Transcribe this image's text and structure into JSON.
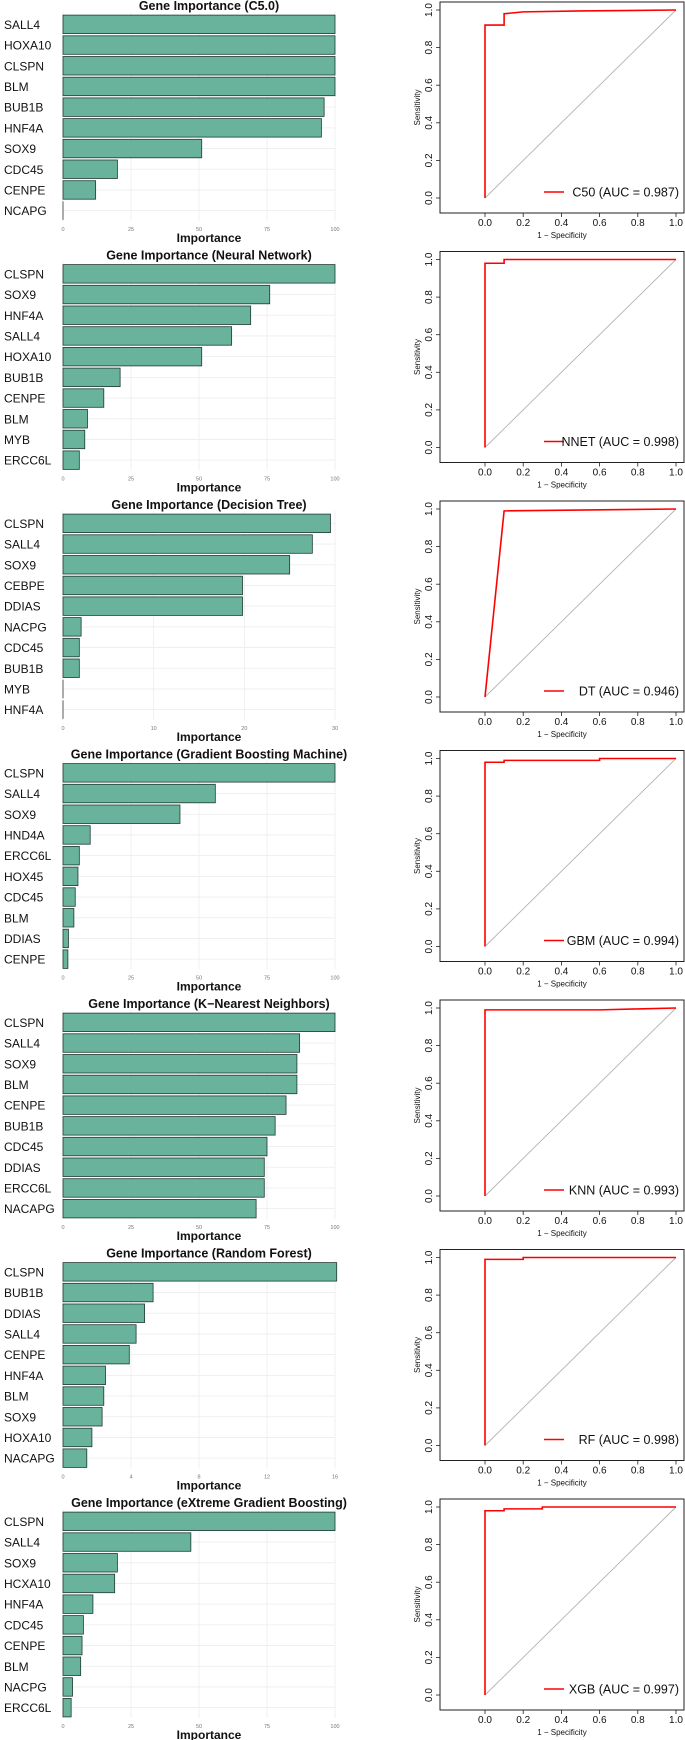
{
  "chart_data": [
    {
      "type": "bar",
      "orientation": "horizontal",
      "title": "Gene Importance (C5.0)",
      "xlabel": "Importance",
      "ylabel": "",
      "xlim": [
        0,
        100
      ],
      "xticks": [
        "0",
        "25",
        "50",
        "75",
        "100"
      ],
      "categories": [
        "SALL4",
        "HOXA10",
        "CLSPN",
        "BLM",
        "BUB1B",
        "HNF4A",
        "SOX9",
        "CDC45",
        "CENPE",
        "NCAPG"
      ],
      "values": [
        100,
        100,
        100,
        100,
        96,
        95,
        51,
        20,
        12,
        0
      ]
    },
    {
      "type": "line",
      "series": [
        {
          "name": "C50 (AUC = 0.987)",
          "x": [
            0.0,
            0.0,
            0.1,
            0.1,
            0.2,
            0.5,
            1.0
          ],
          "y": [
            0.0,
            0.92,
            0.92,
            0.98,
            0.99,
            0.995,
            1.0
          ]
        }
      ],
      "xlabel": "1 − Specificity",
      "ylabel": "Sensitivity",
      "xlim": [
        0,
        1
      ],
      "ylim": [
        0,
        1
      ],
      "ticks": [
        "0.0",
        "0.2",
        "0.4",
        "0.6",
        "0.8",
        "1.0"
      ],
      "legend": "C50 (AUC = 0.987)"
    },
    {
      "type": "bar",
      "orientation": "horizontal",
      "title": "Gene Importance (Neural Network)",
      "xlabel": "Importance",
      "ylabel": "",
      "xlim": [
        0,
        100
      ],
      "xticks": [
        "0",
        "25",
        "50",
        "75",
        "100"
      ],
      "categories": [
        "CLSPN",
        "SOX9",
        "HNF4A",
        "SALL4",
        "HOXA10",
        "BUB1B",
        "CENPE",
        "BLM",
        "MYB",
        "ERCC6L"
      ],
      "values": [
        100,
        76,
        69,
        62,
        51,
        21,
        15,
        9,
        8,
        6
      ]
    },
    {
      "type": "line",
      "series": [
        {
          "name": "NNET (AUC = 0.998)",
          "x": [
            0.0,
            0.0,
            0.1,
            0.1,
            1.0
          ],
          "y": [
            0.0,
            0.98,
            0.98,
            1.0,
            1.0
          ]
        }
      ],
      "xlabel": "1 − Specificity",
      "ylabel": "Sensitivity",
      "xlim": [
        0,
        1
      ],
      "ylim": [
        0,
        1
      ],
      "ticks": [
        "0.0",
        "0.2",
        "0.4",
        "0.6",
        "0.8",
        "1.0"
      ],
      "legend": "NNET (AUC = 0.998)"
    },
    {
      "type": "bar",
      "orientation": "horizontal",
      "title": "Gene Importance (Decision Tree)",
      "xlabel": "Importance",
      "ylabel": "",
      "xlim": [
        0,
        30
      ],
      "xticks": [
        "0",
        "10",
        "20",
        "30"
      ],
      "categories": [
        "CLSPN",
        "SALL4",
        "SOX9",
        "CEBPE",
        "DDIAS",
        "NACPG",
        "CDC45",
        "BUB1B",
        "MYB",
        "HNF4A"
      ],
      "values": [
        29.5,
        27.5,
        25.0,
        19.8,
        19.8,
        2.0,
        1.8,
        1.8,
        0,
        0
      ]
    },
    {
      "type": "line",
      "series": [
        {
          "name": "DT (AUC = 0.946)",
          "x": [
            0.0,
            0.1,
            1.0
          ],
          "y": [
            0.0,
            0.99,
            1.0
          ]
        }
      ],
      "xlabel": "1 − Specificity",
      "ylabel": "Sensitivity",
      "xlim": [
        0,
        1
      ],
      "ylim": [
        0,
        1
      ],
      "ticks": [
        "0.0",
        "0.2",
        "0.4",
        "0.6",
        "0.8",
        "1.0"
      ],
      "legend": "DT (AUC = 0.946)"
    },
    {
      "type": "bar",
      "orientation": "horizontal",
      "title": "Gene Importance (Gradient Boosting Machine)",
      "xlabel": "Importance",
      "ylabel": "",
      "xlim": [
        0,
        100
      ],
      "xticks": [
        "0",
        "25",
        "50",
        "75",
        "100"
      ],
      "categories": [
        "CLSPN",
        "SALL4",
        "SOX9",
        "HND4A",
        "ERCC6L",
        "HOX45",
        "CDC45",
        "BLM",
        "DDIAS",
        "CENPE"
      ],
      "values": [
        100,
        56,
        43,
        10,
        6,
        5.5,
        4.5,
        4,
        2,
        1.8
      ]
    },
    {
      "type": "line",
      "series": [
        {
          "name": "GBM (AUC = 0.994)",
          "x": [
            0.0,
            0.0,
            0.1,
            0.1,
            0.6,
            0.6,
            1.0
          ],
          "y": [
            0.0,
            0.98,
            0.98,
            0.99,
            0.99,
            1.0,
            1.0
          ]
        }
      ],
      "xlabel": "1 − Specificity",
      "ylabel": "Sensitivity",
      "xlim": [
        0,
        1
      ],
      "ylim": [
        0,
        1
      ],
      "ticks": [
        "0.0",
        "0.2",
        "0.4",
        "0.6",
        "0.8",
        "1.0"
      ],
      "legend": "GBM (AUC = 0.994)"
    },
    {
      "type": "bar",
      "orientation": "horizontal",
      "title": "Gene Importance (K−Nearest Neighbors)",
      "xlabel": "Importance",
      "ylabel": "",
      "xlim": [
        0,
        100
      ],
      "xticks": [
        "0",
        "25",
        "50",
        "75",
        "100"
      ],
      "categories": [
        "CLSPN",
        "SALL4",
        "SOX9",
        "BLM",
        "CENPE",
        "BUB1B",
        "CDC45",
        "DDIAS",
        "ERCC6L",
        "NACAPG"
      ],
      "values": [
        100,
        87,
        86,
        86,
        82,
        78,
        75,
        74,
        74,
        71
      ]
    },
    {
      "type": "line",
      "series": [
        {
          "name": "KNN (AUC = 0.993)",
          "x": [
            0.0,
            0.0,
            0.6,
            0.8,
            1.0
          ],
          "y": [
            0.0,
            0.99,
            0.99,
            0.995,
            1.0
          ]
        }
      ],
      "xlabel": "1 − Specificity",
      "ylabel": "Sensitivity",
      "xlim": [
        0,
        1
      ],
      "ylim": [
        0,
        1
      ],
      "ticks": [
        "0.0",
        "0.2",
        "0.4",
        "0.6",
        "0.8",
        "1.0"
      ],
      "legend": "KNN (AUC = 0.993)"
    },
    {
      "type": "bar",
      "orientation": "horizontal",
      "title": "Gene Importance (Random Forest)",
      "xlabel": "Importance",
      "ylabel": "",
      "xlim": [
        0,
        16
      ],
      "xticks": [
        "0",
        "4",
        "8",
        "12",
        "16"
      ],
      "categories": [
        "CLSPN",
        "BUB1B",
        "DDIAS",
        "SALL4",
        "CENPE",
        "HNF4A",
        "BLM",
        "SOX9",
        "HOXA10",
        "NACAPG"
      ],
      "values": [
        16.1,
        5.3,
        4.8,
        4.3,
        3.9,
        2.5,
        2.4,
        2.3,
        1.7,
        1.4
      ]
    },
    {
      "type": "line",
      "series": [
        {
          "name": "RF (AUC = 0.998)",
          "x": [
            0.0,
            0.0,
            0.2,
            0.2,
            1.0
          ],
          "y": [
            0.0,
            0.99,
            0.99,
            1.0,
            1.0
          ]
        }
      ],
      "xlabel": "1 − Specificity",
      "ylabel": "Sensitivity",
      "xlim": [
        0,
        1
      ],
      "ylim": [
        0,
        1
      ],
      "ticks": [
        "0.0",
        "0.2",
        "0.4",
        "0.6",
        "0.8",
        "1.0"
      ],
      "legend": "RF (AUC = 0.998)"
    },
    {
      "type": "bar",
      "orientation": "horizontal",
      "title": "Gene Importance (eXtreme Gradient Boosting)",
      "xlabel": "Importance",
      "ylabel": "",
      "xlim": [
        0,
        100
      ],
      "xticks": [
        "0",
        "25",
        "50",
        "75",
        "100"
      ],
      "categories": [
        "CLSPN",
        "SALL4",
        "SOX9",
        "HCXA10",
        "HNF4A",
        "CDC45",
        "CENPE",
        "BLM",
        "NACPG",
        "ERCC6L"
      ],
      "values": [
        100,
        47,
        20,
        19,
        11,
        7.5,
        7,
        6.5,
        3.5,
        3
      ]
    },
    {
      "type": "line",
      "series": [
        {
          "name": "XGB (AUC = 0.997)",
          "x": [
            0.0,
            0.0,
            0.1,
            0.1,
            0.3,
            0.3,
            1.0
          ],
          "y": [
            0.0,
            0.98,
            0.98,
            0.99,
            0.99,
            1.0,
            1.0
          ]
        }
      ],
      "xlabel": "1 − Specificity",
      "ylabel": "Sensitivity",
      "xlim": [
        0,
        1
      ],
      "ylim": [
        0,
        1
      ],
      "ticks": [
        "0.0",
        "0.2",
        "0.4",
        "0.6",
        "0.8",
        "1.0"
      ],
      "legend": "XGB (AUC = 0.997)"
    }
  ],
  "colors": {
    "bar_fill": "#69b39c",
    "bar_stroke": "#1f3a30",
    "roc_line": "#ff0000",
    "diagonal": "#b3b3b3",
    "grid": "#ececec"
  }
}
